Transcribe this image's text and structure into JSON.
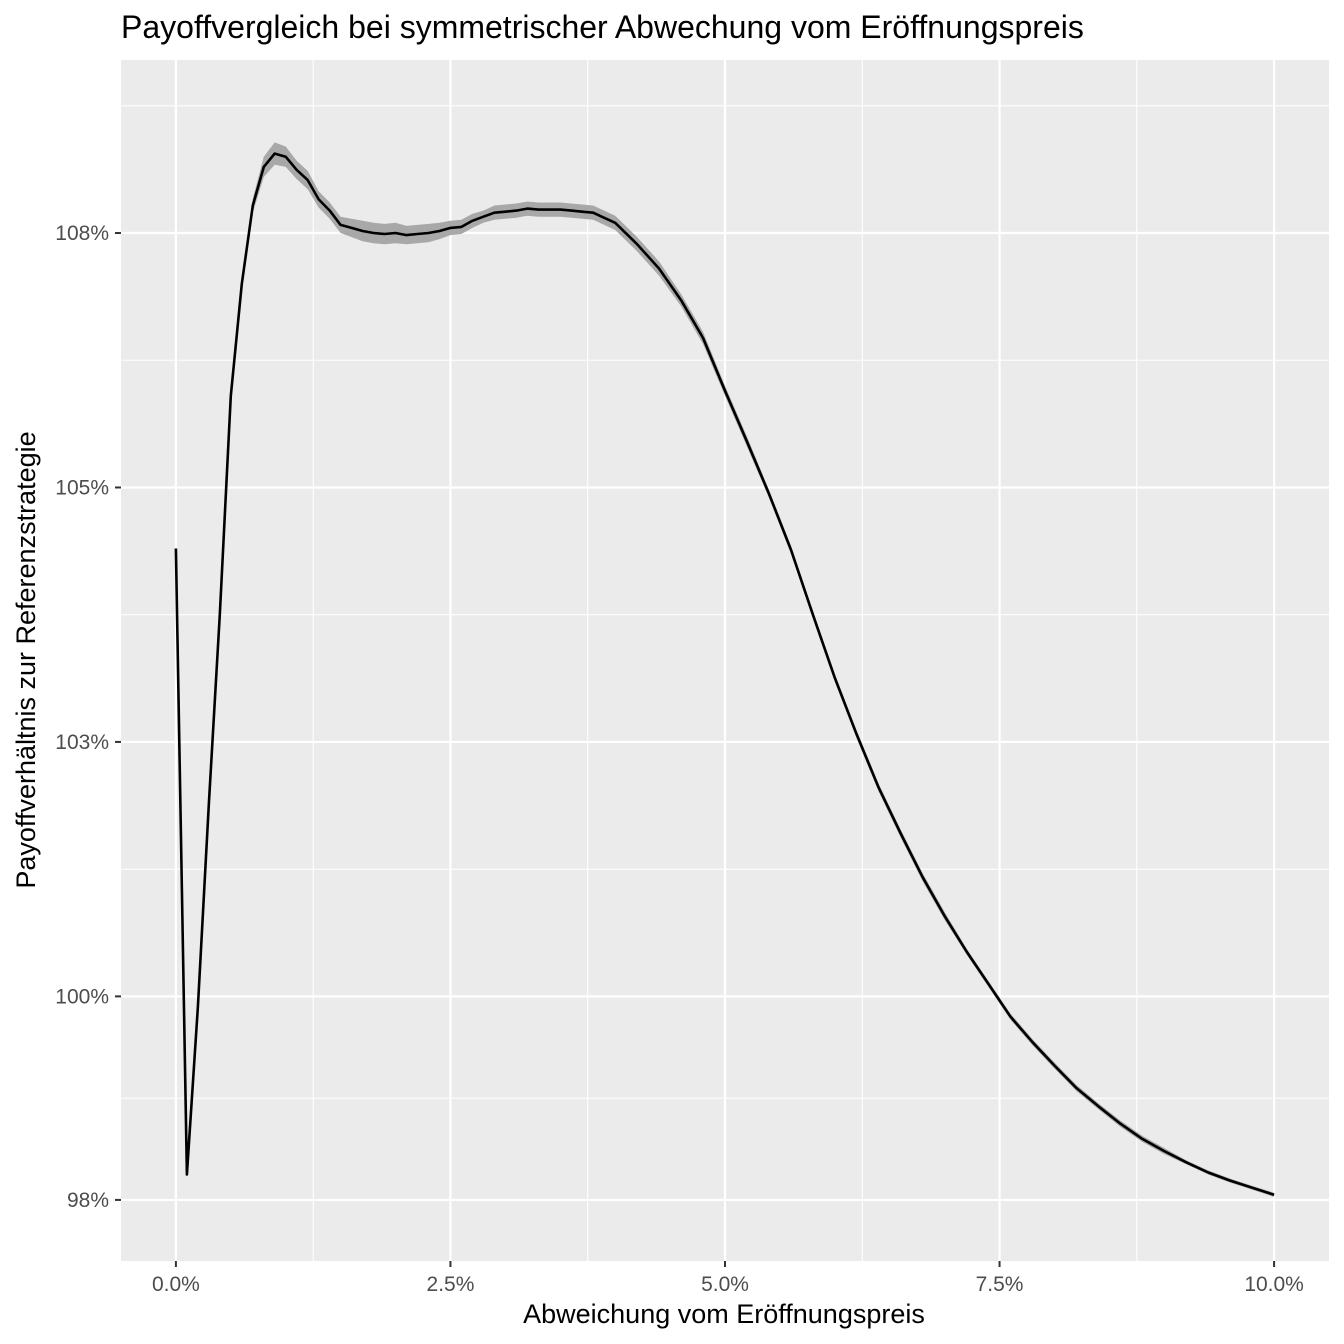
{
  "chart_data": {
    "type": "line",
    "title": "Payoffvergleich bei symmetrischer Abwechung vom Eröffnungspreis",
    "xlabel": "Abweichung vom Eröffnungspreis",
    "ylabel": "Payoffverhältnis zur Referenzstrategie",
    "xlim": [
      -0.5,
      10.5
    ],
    "ylim": [
      97.4,
      109.2
    ],
    "x_ticks": [
      0,
      2.5,
      5,
      7.5,
      10
    ],
    "x_tick_labels": [
      "0.0%",
      "2.5%",
      "5.0%",
      "7.5%",
      "10.0%"
    ],
    "y_ticks": [
      98,
      100,
      102.5,
      105,
      107.5
    ],
    "y_tick_labels": [
      "98%",
      "100%",
      "103%",
      "105%",
      "108%"
    ],
    "grid": true,
    "background": "#ebebeb",
    "grid_color": "#ffffff",
    "line_color": "#000000",
    "band_color": "#a8a8a8",
    "series": [
      {
        "x": [
          0,
          0.1,
          0.2,
          0.3,
          0.4,
          0.5,
          0.6,
          0.7,
          0.8,
          0.9,
          1.0,
          1.1,
          1.2,
          1.3,
          1.4,
          1.5,
          1.6,
          1.7,
          1.8,
          1.9,
          2.0,
          2.1,
          2.2,
          2.3,
          2.4,
          2.5,
          2.6,
          2.7,
          2.8,
          2.9,
          3.0,
          3.1,
          3.2,
          3.3,
          3.4,
          3.5,
          3.6,
          3.7,
          3.8,
          3.9,
          4.0,
          4.2,
          4.4,
          4.6,
          4.8,
          5.0,
          5.2,
          5.4,
          5.6,
          5.8,
          6.0,
          6.2,
          6.4,
          6.6,
          6.8,
          7.0,
          7.2,
          7.4,
          7.6,
          7.8,
          8.0,
          8.2,
          8.4,
          8.6,
          8.8,
          9.0,
          9.2,
          9.4,
          9.6,
          9.8,
          10.0
        ],
        "y": [
          104.4,
          98.25,
          99.9,
          101.9,
          103.75,
          105.9,
          107.0,
          107.77,
          108.15,
          108.28,
          108.25,
          108.12,
          108.02,
          107.83,
          107.72,
          107.58,
          107.55,
          107.52,
          107.5,
          107.49,
          107.5,
          107.48,
          107.49,
          107.5,
          107.52,
          107.55,
          107.56,
          107.62,
          107.66,
          107.7,
          107.71,
          107.72,
          107.74,
          107.73,
          107.73,
          107.73,
          107.72,
          107.71,
          107.7,
          107.65,
          107.6,
          107.39,
          107.15,
          106.84,
          106.47,
          105.95,
          105.45,
          104.94,
          104.39,
          103.75,
          103.13,
          102.57,
          102.05,
          101.6,
          101.17,
          100.79,
          100.44,
          100.12,
          99.8,
          99.55,
          99.32,
          99.1,
          98.92,
          98.75,
          98.6,
          98.48,
          98.37,
          98.27,
          98.19,
          98.12,
          98.05
        ],
        "y_lower": [
          104.4,
          98.25,
          99.9,
          101.9,
          103.75,
          105.9,
          107.0,
          107.7,
          108.05,
          108.17,
          108.15,
          108.03,
          107.93,
          107.75,
          107.64,
          107.5,
          107.46,
          107.42,
          107.4,
          107.39,
          107.4,
          107.39,
          107.4,
          107.41,
          107.44,
          107.48,
          107.49,
          107.55,
          107.6,
          107.63,
          107.64,
          107.65,
          107.67,
          107.66,
          107.66,
          107.66,
          107.65,
          107.64,
          107.63,
          107.58,
          107.53,
          107.32,
          107.08,
          106.78,
          106.41,
          105.9,
          105.4,
          104.9,
          104.35,
          103.71,
          103.09,
          102.53,
          102.01,
          101.56,
          101.13,
          100.75,
          100.41,
          100.09,
          99.77,
          99.52,
          99.29,
          99.07,
          98.89,
          98.72,
          98.57,
          98.45,
          98.35,
          98.25,
          98.17,
          98.1,
          98.03
        ],
        "y_upper": [
          104.4,
          98.25,
          99.9,
          101.9,
          103.75,
          105.9,
          107.0,
          107.84,
          108.25,
          108.39,
          108.35,
          108.21,
          108.11,
          107.91,
          107.8,
          107.66,
          107.64,
          107.62,
          107.6,
          107.59,
          107.6,
          107.57,
          107.58,
          107.59,
          107.6,
          107.62,
          107.63,
          107.69,
          107.72,
          107.77,
          107.78,
          107.79,
          107.81,
          107.8,
          107.8,
          107.8,
          107.79,
          107.78,
          107.77,
          107.72,
          107.67,
          107.46,
          107.22,
          106.9,
          106.53,
          106.0,
          105.5,
          104.98,
          104.43,
          103.79,
          103.17,
          102.61,
          102.09,
          101.64,
          101.21,
          100.83,
          100.47,
          100.15,
          99.83,
          99.58,
          99.35,
          99.13,
          98.95,
          98.78,
          98.63,
          98.51,
          98.39,
          98.29,
          98.21,
          98.14,
          98.07
        ]
      }
    ]
  }
}
